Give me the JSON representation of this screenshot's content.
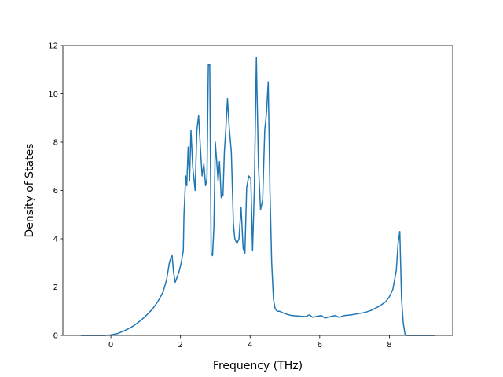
{
  "chart_data": {
    "type": "line",
    "title": "",
    "xlabel": "Frequency (THz)",
    "ylabel": "Density of States",
    "xlim": [
      -1.38,
      9.82
    ],
    "ylim": [
      0,
      12
    ],
    "xticks": [
      0,
      2,
      4,
      6,
      8
    ],
    "yticks": [
      0,
      2,
      4,
      6,
      8,
      10,
      12
    ],
    "grid": false,
    "colors": {
      "line": "#1f77b4",
      "axes": "#000000",
      "background": "#ffffff"
    },
    "series": [
      {
        "x": [
          -0.85,
          -0.5,
          -0.2,
          0.0,
          0.2,
          0.4,
          0.6,
          0.8,
          1.0,
          1.2,
          1.35,
          1.5,
          1.6,
          1.68,
          1.72,
          1.76,
          1.8,
          1.85,
          1.95,
          2.02,
          2.08,
          2.1,
          2.15,
          2.18,
          2.22,
          2.26,
          2.3,
          2.35,
          2.42,
          2.47,
          2.52,
          2.57,
          2.62,
          2.67,
          2.72,
          2.76,
          2.8,
          2.84,
          2.88,
          2.92,
          2.96,
          3.0,
          3.04,
          3.08,
          3.12,
          3.17,
          3.22,
          3.26,
          3.3,
          3.35,
          3.4,
          3.46,
          3.52,
          3.56,
          3.62,
          3.68,
          3.74,
          3.8,
          3.85,
          3.9,
          3.96,
          4.02,
          4.07,
          4.12,
          4.18,
          4.24,
          4.3,
          4.36,
          4.42,
          4.47,
          4.52,
          4.57,
          4.62,
          4.67,
          4.72,
          4.78,
          4.85,
          4.92,
          5.0,
          5.2,
          5.4,
          5.6,
          5.7,
          5.8,
          5.95,
          6.05,
          6.15,
          6.3,
          6.45,
          6.55,
          6.7,
          6.9,
          7.1,
          7.3,
          7.5,
          7.7,
          7.9,
          8.0,
          8.1,
          8.15,
          8.2,
          8.25,
          8.3,
          8.35,
          8.4,
          8.45,
          8.5,
          9.3
        ],
        "y": [
          0,
          0,
          0,
          0.02,
          0.08,
          0.2,
          0.35,
          0.55,
          0.8,
          1.1,
          1.4,
          1.8,
          2.3,
          3.0,
          3.2,
          3.3,
          2.6,
          2.2,
          2.6,
          3.0,
          3.5,
          5.0,
          6.6,
          6.2,
          7.8,
          6.4,
          8.5,
          7.0,
          6.0,
          8.5,
          9.1,
          7.8,
          6.6,
          7.1,
          6.2,
          6.5,
          11.2,
          11.2,
          3.4,
          3.3,
          4.5,
          8.0,
          7.2,
          6.4,
          7.2,
          5.7,
          5.8,
          7.6,
          8.5,
          9.8,
          8.6,
          7.6,
          4.6,
          4.0,
          3.8,
          4.0,
          5.3,
          3.6,
          3.4,
          6.1,
          6.6,
          6.5,
          3.5,
          6.0,
          11.5,
          7.0,
          5.2,
          5.6,
          8.5,
          9.2,
          10.5,
          6.0,
          3.0,
          1.5,
          1.1,
          1.0,
          1.0,
          0.95,
          0.9,
          0.82,
          0.8,
          0.78,
          0.85,
          0.75,
          0.8,
          0.82,
          0.72,
          0.78,
          0.82,
          0.75,
          0.82,
          0.85,
          0.9,
          0.95,
          1.05,
          1.2,
          1.4,
          1.6,
          1.9,
          2.3,
          2.7,
          3.8,
          4.3,
          1.5,
          0.5,
          0.05,
          0,
          0
        ]
      }
    ]
  }
}
